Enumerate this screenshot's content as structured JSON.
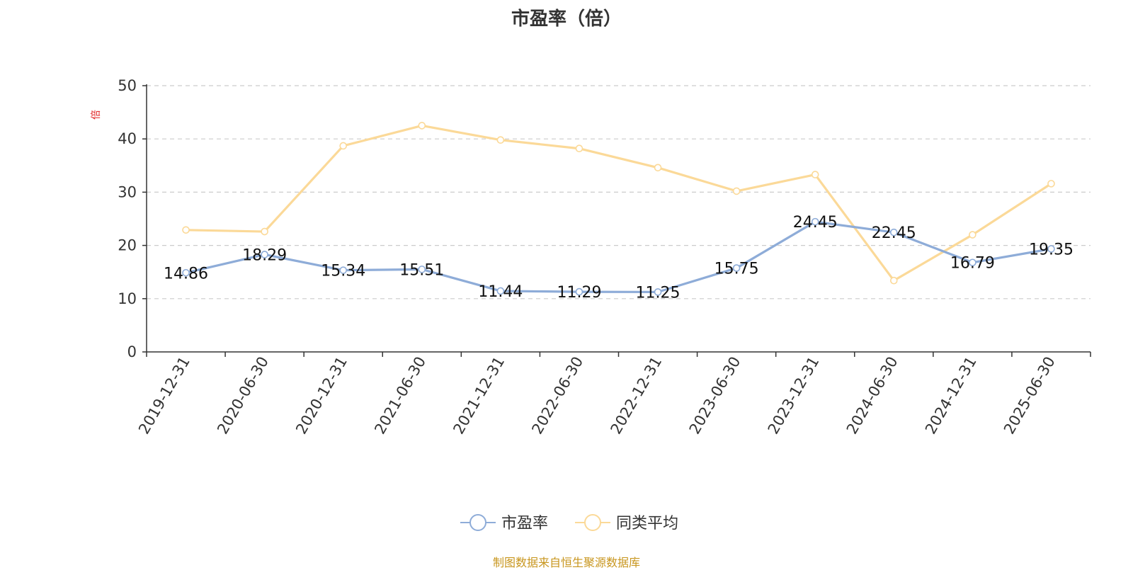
{
  "chart_data": {
    "type": "line",
    "title": "市盈率（倍）",
    "ylabel": "倍",
    "ylim": [
      0,
      50
    ],
    "yticks": [
      0,
      10,
      20,
      30,
      40,
      50
    ],
    "grid": true,
    "legend_position": "bottom-center",
    "categories": [
      "2019-12-31",
      "2020-06-30",
      "2020-12-31",
      "2021-06-30",
      "2021-12-31",
      "2022-06-30",
      "2022-12-31",
      "2023-06-30",
      "2023-12-31",
      "2024-06-30",
      "2024-12-31",
      "2025-06-30"
    ],
    "series": [
      {
        "name": "市盈率",
        "color": "#8eacd8",
        "show_labels": true,
        "values": [
          14.86,
          18.29,
          15.34,
          15.51,
          11.44,
          11.29,
          11.25,
          15.75,
          24.45,
          22.45,
          16.79,
          19.35
        ]
      },
      {
        "name": "同类平均",
        "color": "#fbd998",
        "show_labels": false,
        "values": [
          22.9,
          22.6,
          38.7,
          42.5,
          39.8,
          38.2,
          34.6,
          30.2,
          33.3,
          13.4,
          22.0,
          31.6
        ]
      }
    ]
  },
  "source_note": "制图数据来自恒生聚源数据库",
  "colors": {
    "title": "#333333",
    "axis": "#333333",
    "grid": "#cccccc",
    "ylabel": "#e02020",
    "source": "#c8961e"
  }
}
